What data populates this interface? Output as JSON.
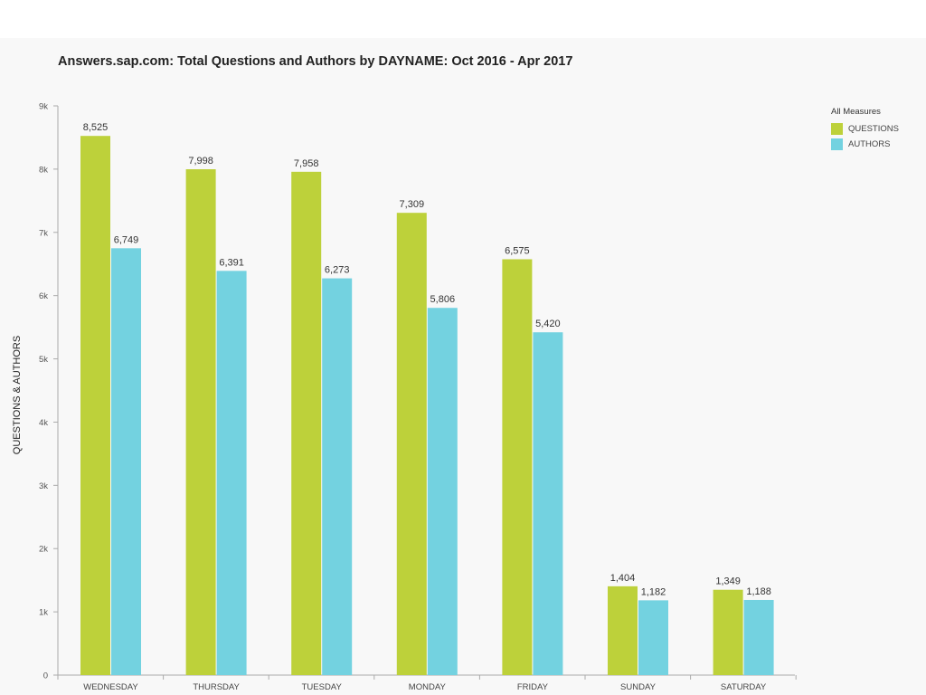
{
  "chart_data": {
    "type": "bar",
    "title": "Answers.sap.com: Total Questions and Authors by DAYNAME: Oct 2016 - Apr 2017",
    "xlabel": "",
    "ylabel": "QUESTIONS & AUTHORS",
    "ylim": [
      0,
      9000
    ],
    "yticks": [
      {
        "value": 0,
        "label": "0"
      },
      {
        "value": 1000,
        "label": "1k"
      },
      {
        "value": 2000,
        "label": "2k"
      },
      {
        "value": 3000,
        "label": "3k"
      },
      {
        "value": 4000,
        "label": "4k"
      },
      {
        "value": 5000,
        "label": "5k"
      },
      {
        "value": 6000,
        "label": "6k"
      },
      {
        "value": 7000,
        "label": "7k"
      },
      {
        "value": 8000,
        "label": "8k"
      },
      {
        "value": 9000,
        "label": "9k"
      }
    ],
    "categories": [
      "WEDNESDAY",
      "THURSDAY",
      "TUESDAY",
      "MONDAY",
      "FRIDAY",
      "SUNDAY",
      "SATURDAY"
    ],
    "series": [
      {
        "name": "QUESTIONS",
        "color": "#bdd13a",
        "values": [
          8525,
          7998,
          7958,
          7309,
          6575,
          1404,
          1349
        ],
        "labels": [
          "8,525",
          "7,998",
          "7,958",
          "7,309",
          "6,575",
          "1,404",
          "1,349"
        ]
      },
      {
        "name": "AUTHORS",
        "color": "#73d2e0",
        "values": [
          6749,
          6391,
          6273,
          5806,
          5420,
          1182,
          1188
        ],
        "labels": [
          "6,749",
          "6,391",
          "6,273",
          "5,806",
          "5,420",
          "1,182",
          "1,188"
        ]
      }
    ],
    "legend": {
      "title": "All Measures",
      "position": "top-right"
    },
    "grid": false
  }
}
